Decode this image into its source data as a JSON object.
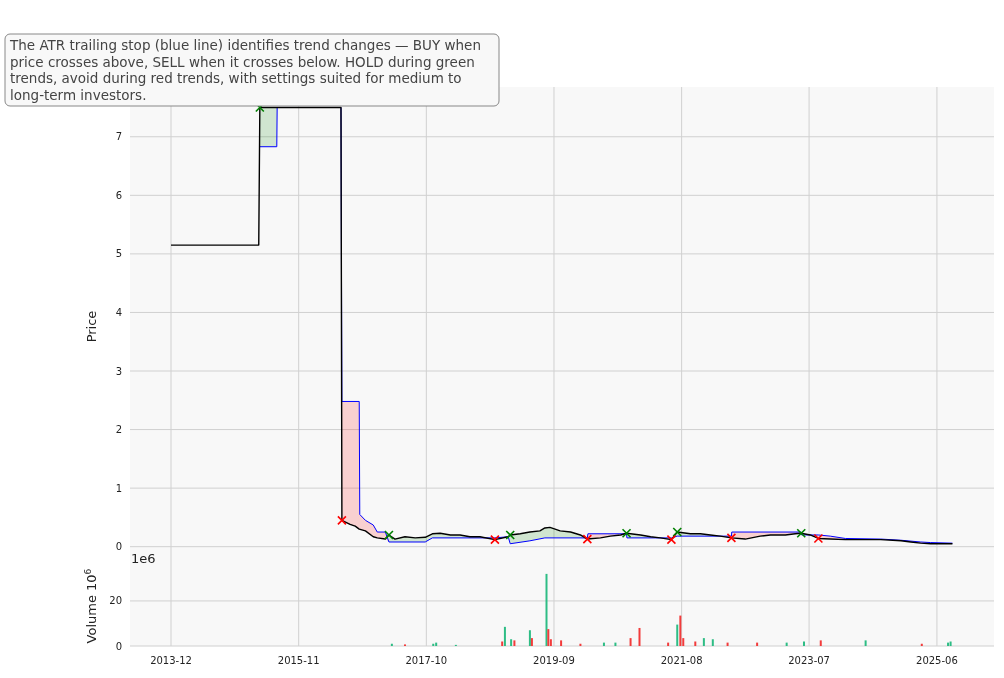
{
  "chart_data": [
    {
      "type": "line",
      "ylabel": "Price",
      "annotations": [
        "The ATR trailing stop (blue line) identifies trend changes — BUY when price crosses above, SELL when it crosses below. HOLD during green trends, avoid during red trends, with settings suited for medium to long-term investors."
      ],
      "xlim": [
        "2013-04-20",
        "2026-04-10"
      ],
      "xticks": [
        "2013-12",
        "2015-11",
        "2017-10",
        "2019-09",
        "2021-08",
        "2023-07",
        "2025-06"
      ],
      "ylim": [
        -0.33,
        7.85
      ],
      "yticks": [
        0,
        1,
        2,
        3,
        4,
        5,
        6,
        7
      ],
      "grid": true,
      "tick_labels": "y",
      "series": [
        {
          "color": "#000000",
          "x": [
            "2013-12-01",
            "2015-03-27",
            "2015-04-02",
            "2016-06-20",
            "2016-06-25",
            "2016-08-09",
            "2016-09-06",
            "2016-09-28",
            "2016-11-01",
            "2016-12-14",
            "2017-01-05",
            "2017-02-18",
            "2017-03-10",
            "2017-04-12",
            "2017-06-06",
            "2017-08-01",
            "2017-09-25",
            "2017-11-03",
            "2017-12-16",
            "2018-02-10",
            "2018-04-04",
            "2018-05-28",
            "2018-07-22",
            "2018-10-12",
            "2018-12-24",
            "2019-01-04",
            "2019-02-28",
            "2019-04-22",
            "2019-06-16",
            "2019-07-13",
            "2019-08-10",
            "2019-10-05",
            "2019-12-01",
            "2020-01-24",
            "2020-03-02",
            "2020-05-13",
            "2020-07-06",
            "2020-09-01",
            "2020-10-03",
            "2020-12-19",
            "2021-02-12",
            "2021-04-06",
            "2021-06-06",
            "2021-07-08",
            "2021-09-18",
            "2021-11-12",
            "2022-01-06",
            "2022-03-01",
            "2022-05-01",
            "2022-07-16",
            "2022-10-06",
            "2022-12-01",
            "2023-02-21",
            "2023-04-16",
            "2023-05-19",
            "2023-07-07",
            "2023-08-21",
            "2023-10-25",
            "2024-01-16",
            "2024-04-09",
            "2024-07-28",
            "2024-11-16",
            "2025-01-09",
            "2025-03-04",
            "2025-04-28",
            "2025-06-22",
            "2025-08-25"
          ],
          "values": [
            5.15,
            5.15,
            7.5,
            7.5,
            0.45,
            0.38,
            0.35,
            0.3,
            0.27,
            0.17,
            0.15,
            0.13,
            0.2,
            0.13,
            0.17,
            0.15,
            0.16,
            0.22,
            0.23,
            0.2,
            0.2,
            0.17,
            0.17,
            0.12,
            0.17,
            0.2,
            0.22,
            0.25,
            0.27,
            0.32,
            0.33,
            0.27,
            0.25,
            0.2,
            0.13,
            0.15,
            0.18,
            0.2,
            0.23,
            0.2,
            0.17,
            0.15,
            0.12,
            0.25,
            0.22,
            0.22,
            0.2,
            0.18,
            0.15,
            0.13,
            0.18,
            0.2,
            0.2,
            0.22,
            0.23,
            0.2,
            0.14,
            0.13,
            0.12,
            0.12,
            0.12,
            0.1,
            0.08,
            0.06,
            0.05,
            0.05,
            0.05
          ]
        },
        {
          "type": "line",
          "color": "#0000ff",
          "x": [
            "2015-04-02",
            "2015-07-04",
            "2015-07-06",
            "2016-06-20",
            "2016-06-25",
            "2016-09-28",
            "2016-10-01",
            "2016-11-01",
            "2016-12-14",
            "2017-01-05",
            "2017-02-18",
            "2017-03-10",
            "2017-09-25",
            "2017-11-03",
            "2018-10-12",
            "2018-12-24",
            "2019-01-04",
            "2019-04-22",
            "2019-07-13",
            "2020-03-02",
            "2020-03-05",
            "2020-10-03",
            "2020-10-05",
            "2021-06-06",
            "2021-07-08",
            "2022-05-01",
            "2022-05-03",
            "2023-05-19",
            "2023-05-21",
            "2023-08-21",
            "2023-10-25",
            "2024-01-16",
            "2024-07-28",
            "2024-11-16",
            "2025-03-04",
            "2025-04-28",
            "2025-08-25"
          ],
          "values": [
            6.83,
            6.83,
            7.5,
            7.5,
            2.48,
            2.48,
            0.55,
            0.45,
            0.37,
            0.25,
            0.25,
            0.08,
            0.08,
            0.15,
            0.15,
            0.17,
            0.05,
            0.1,
            0.15,
            0.15,
            0.22,
            0.22,
            0.15,
            0.15,
            0.18,
            0.18,
            0.25,
            0.25,
            0.2,
            0.2,
            0.18,
            0.14,
            0.13,
            0.11,
            0.08,
            0.07,
            0.06
          ]
        },
        {
          "type": "scatter",
          "marker": "cross",
          "color": "#008000",
          "x": [
            "2015-04-02",
            "2017-03-10",
            "2019-01-04",
            "2020-10-03",
            "2021-07-08",
            "2023-05-19"
          ],
          "values": [
            7.5,
            0.2,
            0.2,
            0.23,
            0.25,
            0.23
          ]
        },
        {
          "type": "scatter",
          "marker": "cross",
          "color": "#ff0000",
          "x": [
            "2016-06-25",
            "2018-10-12",
            "2020-03-02",
            "2021-06-06",
            "2022-05-01",
            "2023-08-21"
          ],
          "values": [
            0.45,
            0.12,
            0.13,
            0.12,
            0.15,
            0.14
          ]
        }
      ]
    },
    {
      "type": "bar",
      "ylabel": "Volume  10$^{6}$",
      "annotations": [
        "1e6"
      ],
      "xlim": [
        "2013-04-20",
        "2026-04-10"
      ],
      "xticks": [
        "2013-12",
        "2015-11",
        "2017-10",
        "2019-09",
        "2021-08",
        "2023-07",
        "2025-06"
      ],
      "ylim": [
        0,
        35.5
      ],
      "yticks": [
        0,
        20
      ],
      "grid": true,
      "x": [
        "2017-03-26",
        "2017-06-06",
        "2017-11-08",
        "2017-11-24",
        "2018-03-12",
        "2018-11-21",
        "2018-12-06",
        "2019-01-09",
        "2019-01-27",
        "2019-04-22",
        "2019-05-03",
        "2019-07-22",
        "2019-08-01",
        "2019-08-15",
        "2019-10-10",
        "2020-01-24",
        "2020-06-01",
        "2020-08-03",
        "2020-10-25",
        "2020-12-13",
        "2021-05-19",
        "2021-07-08",
        "2021-07-25",
        "2021-08-10",
        "2021-10-15",
        "2021-12-01",
        "2022-01-19",
        "2022-04-10",
        "2022-09-19",
        "2023-02-28",
        "2023-06-03",
        "2023-09-03",
        "2024-05-06",
        "2025-03-10",
        "2025-08-01",
        "2025-08-15"
      ],
      "values": [
        1,
        0.7,
        1,
        1.5,
        0.5,
        2,
        8.5,
        3,
        2.5,
        7,
        3.5,
        32,
        7.5,
        3,
        2.5,
        1,
        1.5,
        1.5,
        3.5,
        8,
        1.5,
        9.5,
        13.5,
        3.5,
        2,
        3.5,
        3,
        1.5,
        1.5,
        1.5,
        2,
        2.5,
        2.5,
        1,
        1.5,
        2
      ],
      "colors": [
        "#2ebd85",
        "#f23c3c",
        "#2ebd85",
        "#2ebd85",
        "#2ebd85",
        "#f23c3c",
        "#2ebd85",
        "#2ebd85",
        "#f23c3c",
        "#2ebd85",
        "#f23c3c",
        "#2ebd85",
        "#f23c3c",
        "#f23c3c",
        "#f23c3c",
        "#f23c3c",
        "#2ebd85",
        "#2ebd85",
        "#f23c3c",
        "#f23c3c",
        "#f23c3c",
        "#2ebd85",
        "#f23c3c",
        "#f23c3c",
        "#f23c3c",
        "#2ebd85",
        "#2ebd85",
        "#f23c3c",
        "#f23c3c",
        "#2ebd85",
        "#2ebd85",
        "#f23c3c",
        "#2ebd85",
        "#f23c3c",
        "#2ebd85",
        "#2ebd85"
      ]
    }
  ]
}
